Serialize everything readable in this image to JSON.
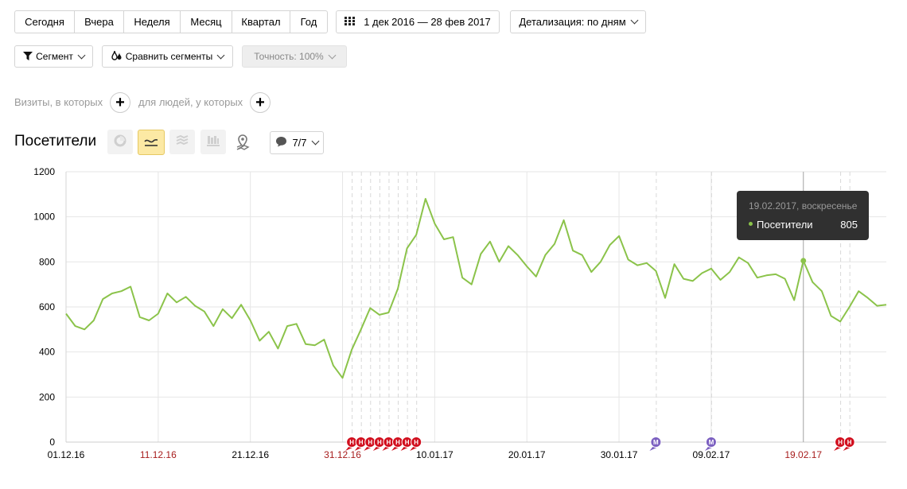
{
  "periods": [
    "Сегодня",
    "Вчера",
    "Неделя",
    "Месяц",
    "Квартал",
    "Год"
  ],
  "date_range": "1 дек 2016 — 28 фев 2017",
  "detail": "Детализация: по дням",
  "segment": "Сегмент",
  "compare": "Сравнить сегменты",
  "accuracy": "Точность: 100%",
  "visits_label": "Визиты, в которых",
  "people_label": "для людей, у которых",
  "metric_title": "Посетители",
  "annotations_label": "7/7",
  "tooltip": {
    "date": "19.02.2017, воскресенье",
    "series": "Посетители",
    "value": "805"
  },
  "chart_data": {
    "type": "line",
    "ylim": [
      0,
      1200
    ],
    "yticks": [
      "0",
      "200",
      "400",
      "600",
      "800",
      "1000",
      "1200"
    ],
    "xticks": [
      {
        "label": "01.12.16",
        "holiday": false
      },
      {
        "label": "11.12.16",
        "holiday": true
      },
      {
        "label": "21.12.16",
        "holiday": false
      },
      {
        "label": "31.12.16",
        "holiday": true
      },
      {
        "label": "10.01.17",
        "holiday": false
      },
      {
        "label": "20.01.17",
        "holiday": false
      },
      {
        "label": "30.01.17",
        "holiday": false
      },
      {
        "label": "09.02.17",
        "holiday": false
      },
      {
        "label": "19.02.17",
        "holiday": true
      }
    ],
    "start_date": "01.12.16",
    "series": [
      {
        "name": "Посетители",
        "color": "#8bc34a",
        "values": [
          570,
          515,
          500,
          540,
          635,
          660,
          670,
          690,
          555,
          540,
          570,
          660,
          620,
          645,
          605,
          580,
          515,
          590,
          550,
          610,
          540,
          450,
          490,
          415,
          515,
          525,
          435,
          430,
          455,
          340,
          285,
          410,
          500,
          595,
          565,
          575,
          680,
          860,
          920,
          1080,
          970,
          900,
          910,
          730,
          700,
          835,
          890,
          800,
          870,
          830,
          780,
          735,
          830,
          880,
          985,
          850,
          830,
          755,
          800,
          875,
          915,
          810,
          785,
          795,
          760,
          640,
          790,
          725,
          715,
          750,
          770,
          720,
          755,
          820,
          795,
          730,
          740,
          745,
          725,
          630,
          805,
          710,
          670,
          560,
          535,
          600,
          670,
          640,
          605,
          610
        ]
      }
    ],
    "markers": [
      {
        "day": 31,
        "type": "Н"
      },
      {
        "day": 32,
        "type": "Н"
      },
      {
        "day": 33,
        "type": "Н"
      },
      {
        "day": 34,
        "type": "Н"
      },
      {
        "day": 35,
        "type": "Н"
      },
      {
        "day": 36,
        "type": "Н"
      },
      {
        "day": 37,
        "type": "Н"
      },
      {
        "day": 38,
        "type": "Н"
      },
      {
        "day": 64,
        "type": "М"
      },
      {
        "day": 70,
        "type": "М"
      },
      {
        "day": 84,
        "type": "Н"
      },
      {
        "day": 85,
        "type": "Н"
      }
    ],
    "highlight_day": 80,
    "marker_colors": {
      "Н": "#d10f1e",
      "М": "#7b5fc0"
    },
    "holiday_color": "#a71d1d"
  }
}
